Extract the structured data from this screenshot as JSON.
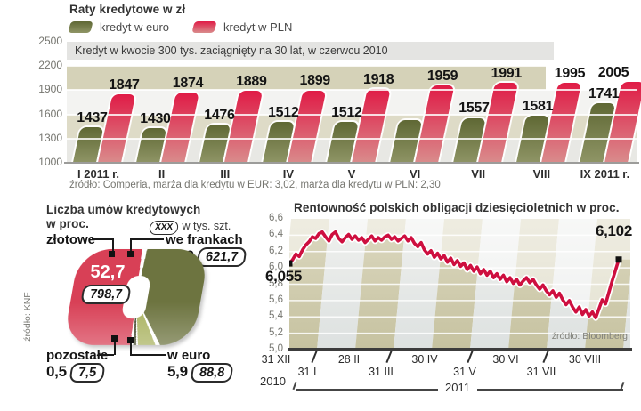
{
  "chart_data": [
    {
      "id": "installments",
      "type": "bar",
      "title": "Raty kredytowe w zł",
      "subtitle": "Kredyt w kwocie 300 tys. zaciągnięty na 30 lat, w czerwcu 2010",
      "source": "źródło: Comperia, marża dla kredytu w EUR: 3,02, marża dla kredytu w PLN: 2,30",
      "legend": [
        {
          "label": "kredyt w euro",
          "color": "#5f6834",
          "color_light": "#8f9566"
        },
        {
          "label": "kredyt w PLN",
          "color": "#e01b46",
          "color_light": "#d98c8c"
        }
      ],
      "categories": [
        "I 2011 r.",
        "II",
        "III",
        "IV",
        "V",
        "VI",
        "VII",
        "VIII",
        "IX 2011 r."
      ],
      "series": [
        {
          "name": "kredyt w euro",
          "color": "#5f6834",
          "color_light": "#8f9566",
          "values": [
            1437,
            1430,
            1476,
            1512,
            1512,
            1535,
            1557,
            1581,
            1741
          ],
          "labels": [
            "1437",
            "1430",
            "1476",
            "1512",
            "1512",
            "",
            "1557",
            "1581",
            "1741"
          ]
        },
        {
          "name": "kredyt w PLN",
          "color": "#e01b46",
          "color_light": "#d98c8c",
          "values": [
            1847,
            1874,
            1889,
            1899,
            1918,
            1959,
            1991,
            1995,
            2005
          ],
          "labels": [
            "1847",
            "1874",
            "1889",
            "1899",
            "1918",
            "1959",
            "1991",
            "1995",
            "2005"
          ]
        }
      ],
      "ylim": [
        1000,
        2500
      ],
      "y_ticks": [
        "2500",
        "2200",
        "1900",
        "1600",
        "1300",
        "1000"
      ]
    },
    {
      "id": "agreements",
      "type": "pie",
      "title_line1": "Liczba umów kredytowych",
      "title_line2": "w proc.",
      "unit_box": "XXX",
      "unit_note": "w tys. szt.",
      "source": "źródło: KNF",
      "slices": [
        {
          "label": "złotowe",
          "pct": "52,7",
          "count": "798,7",
          "value": 52.7,
          "color": "#d84056"
        },
        {
          "label": "we frankach",
          "pct": "41,0",
          "count": "621,7",
          "value": 41.0,
          "color": "#6d7440"
        },
        {
          "label": "w euro",
          "pct": "5,9",
          "count": "88,8",
          "value": 5.9,
          "color": "#a9b25f"
        },
        {
          "label": "pozostałe",
          "pct": "0,5",
          "count": "7,5",
          "value": 0.5,
          "color": "#3c4124"
        }
      ]
    },
    {
      "id": "bonds",
      "type": "line",
      "title": "Rentowność  polskich obligacji dziesięcioletnich w proc.",
      "source": "źródło: Bloomberg",
      "line_color": "#ce0f3f",
      "start_label": "6,055",
      "end_label": "6,102",
      "ylim": [
        5.0,
        6.6
      ],
      "y_ticks": [
        "6,6",
        "6,4",
        "6,2",
        "6,0",
        "5,8",
        "5,6",
        "5,4",
        "5,2",
        "5,0"
      ],
      "x_ticks_upper": [
        "31 XII",
        "28 II",
        "30 IV",
        "30 VI",
        "30 VIII"
      ],
      "x_ticks_lower": [
        "31 I",
        "31 III",
        "31 V",
        "31 VII"
      ],
      "year_left": "2010",
      "year_right": "2011",
      "points": [
        [
          0,
          6.055
        ],
        [
          1,
          6.1
        ],
        [
          2,
          6.17
        ],
        [
          3,
          6.14
        ],
        [
          4,
          6.22
        ],
        [
          5,
          6.28
        ],
        [
          6,
          6.32
        ],
        [
          7,
          6.38
        ],
        [
          8,
          6.36
        ],
        [
          9,
          6.42
        ],
        [
          10,
          6.44
        ],
        [
          11,
          6.38
        ],
        [
          12,
          6.33
        ],
        [
          13,
          6.41
        ],
        [
          14,
          6.44
        ],
        [
          15,
          6.36
        ],
        [
          16,
          6.32
        ],
        [
          17,
          6.37
        ],
        [
          18,
          6.41
        ],
        [
          19,
          6.35
        ],
        [
          20,
          6.39
        ],
        [
          21,
          6.34
        ],
        [
          22,
          6.37
        ],
        [
          23,
          6.31
        ],
        [
          24,
          6.35
        ],
        [
          25,
          6.39
        ],
        [
          26,
          6.33
        ],
        [
          27,
          6.37
        ],
        [
          28,
          6.34
        ],
        [
          29,
          6.38
        ],
        [
          30,
          6.4
        ],
        [
          31,
          6.35
        ],
        [
          32,
          6.38
        ],
        [
          33,
          6.33
        ],
        [
          34,
          6.36
        ],
        [
          35,
          6.39
        ],
        [
          36,
          6.33
        ],
        [
          37,
          6.37
        ],
        [
          38,
          6.3
        ],
        [
          39,
          6.26
        ],
        [
          40,
          6.31
        ],
        [
          41,
          6.22
        ],
        [
          42,
          6.17
        ],
        [
          43,
          6.21
        ],
        [
          44,
          6.13
        ],
        [
          45,
          6.18
        ],
        [
          46,
          6.11
        ],
        [
          47,
          6.15
        ],
        [
          48,
          6.07
        ],
        [
          49,
          6.12
        ],
        [
          50,
          6.04
        ],
        [
          51,
          6.09
        ],
        [
          52,
          6.02
        ],
        [
          53,
          6.06
        ],
        [
          54,
          5.98
        ],
        [
          55,
          6.03
        ],
        [
          56,
          5.96
        ],
        [
          57,
          6.01
        ],
        [
          58,
          5.93
        ],
        [
          59,
          5.98
        ],
        [
          60,
          5.91
        ],
        [
          61,
          5.96
        ],
        [
          62,
          5.88
        ],
        [
          63,
          5.93
        ],
        [
          64,
          5.86
        ],
        [
          65,
          5.91
        ],
        [
          66,
          5.83
        ],
        [
          67,
          5.88
        ],
        [
          68,
          5.81
        ],
        [
          69,
          5.86
        ],
        [
          70,
          5.79
        ],
        [
          71,
          5.84
        ],
        [
          72,
          5.88
        ],
        [
          73,
          5.82
        ],
        [
          74,
          5.86
        ],
        [
          75,
          5.79
        ],
        [
          76,
          5.74
        ],
        [
          77,
          5.79
        ],
        [
          78,
          5.72
        ],
        [
          79,
          5.67
        ],
        [
          80,
          5.72
        ],
        [
          81,
          5.64
        ],
        [
          82,
          5.69
        ],
        [
          83,
          5.61
        ],
        [
          84,
          5.55
        ],
        [
          85,
          5.6
        ],
        [
          86,
          5.52
        ],
        [
          87,
          5.46
        ],
        [
          88,
          5.52
        ],
        [
          89,
          5.43
        ],
        [
          90,
          5.49
        ],
        [
          91,
          5.41
        ],
        [
          92,
          5.46
        ],
        [
          93,
          5.39
        ],
        [
          94,
          5.5
        ],
        [
          95,
          5.61
        ],
        [
          96,
          5.56
        ],
        [
          97,
          5.7
        ],
        [
          98,
          5.84
        ],
        [
          99,
          5.97
        ],
        [
          100,
          6.102
        ]
      ]
    }
  ]
}
